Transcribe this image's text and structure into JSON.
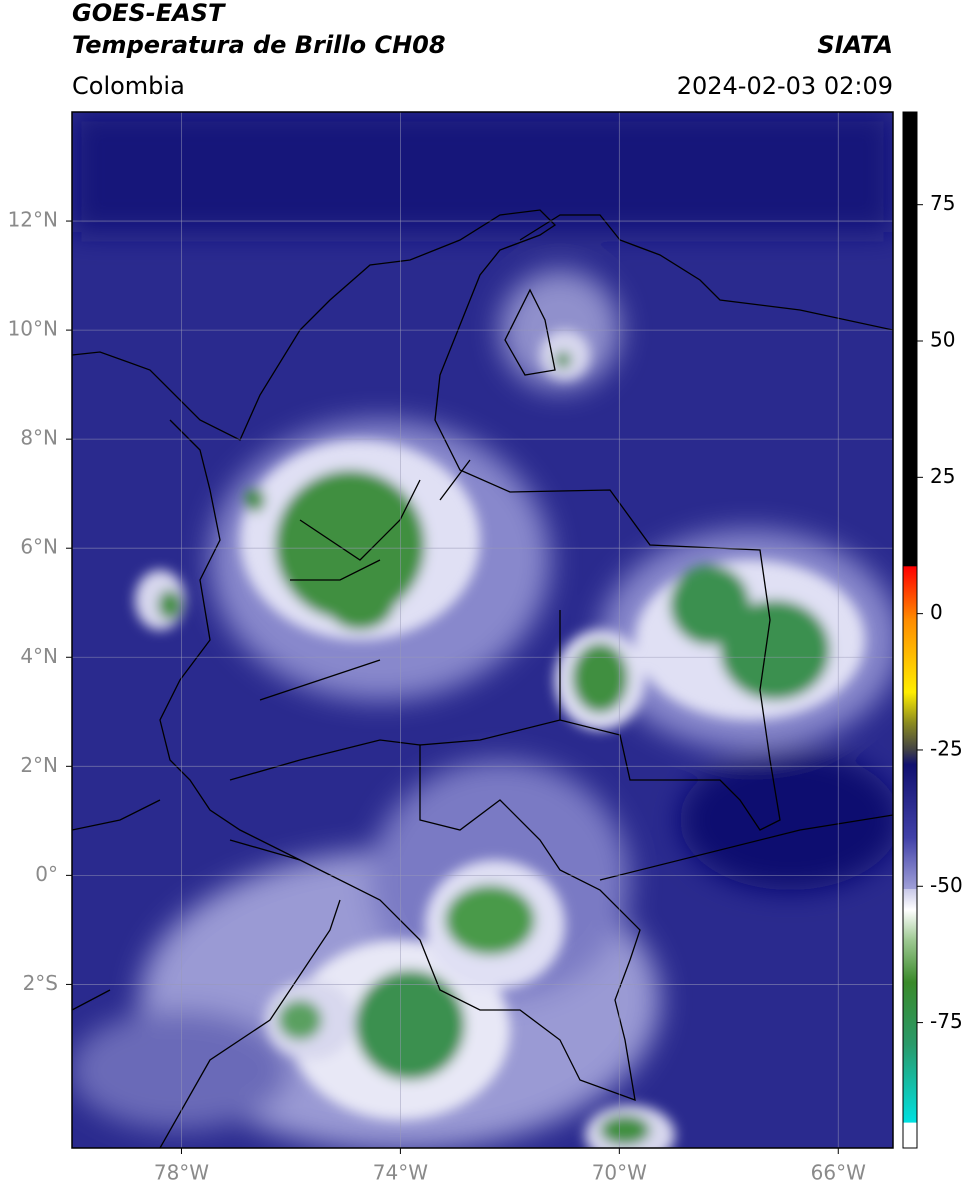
{
  "header": {
    "satellite": "GOES-EAST",
    "product": "Temperatura de Brillo CH08",
    "agency": "SIATA",
    "region": "Colombia",
    "timestamp": "2024-02-03 02:09"
  },
  "map": {
    "xlim": [
      -80,
      -65
    ],
    "ylim": [
      -5,
      14
    ],
    "xticks": [
      {
        "value": -78,
        "label": "78°W"
      },
      {
        "value": -74,
        "label": "74°W"
      },
      {
        "value": -70,
        "label": "70°W"
      },
      {
        "value": -66,
        "label": "66°W"
      }
    ],
    "yticks": [
      {
        "value": 12,
        "label": "12°N"
      },
      {
        "value": 10,
        "label": "10°N"
      },
      {
        "value": 8,
        "label": "8°N"
      },
      {
        "value": 6,
        "label": "6°N"
      },
      {
        "value": 4,
        "label": "4°N"
      },
      {
        "value": 2,
        "label": "2°N"
      },
      {
        "value": 0,
        "label": "0°"
      },
      {
        "value": -2,
        "label": "2°S"
      }
    ],
    "grid": true
  },
  "colorbar": {
    "lim": [
      -98,
      92
    ],
    "ticks": [
      75,
      50,
      25,
      0,
      -25,
      -50,
      -75
    ]
  }
}
